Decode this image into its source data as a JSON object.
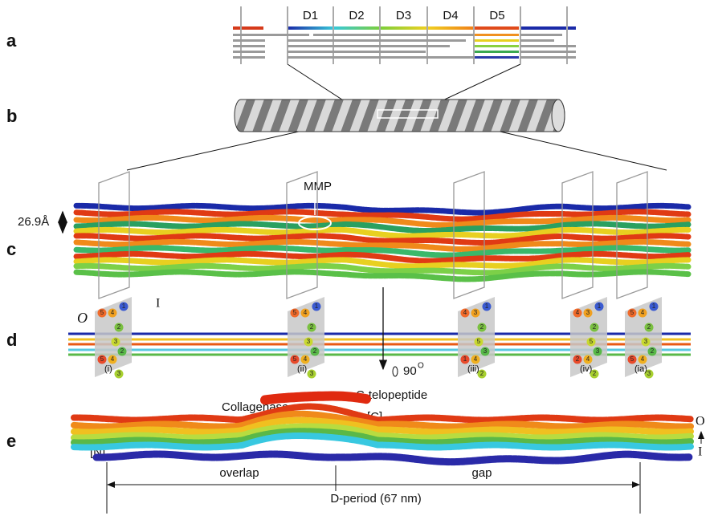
{
  "panels": {
    "a": {
      "label": "a",
      "domains": [
        "D1",
        "D2",
        "D3",
        "D4",
        "D5"
      ]
    },
    "b": {
      "label": "b"
    },
    "c": {
      "label": "c",
      "spacing": "26.9Å",
      "site": "MMP"
    },
    "d": {
      "label": "d",
      "side_out": "O",
      "side_in": "I",
      "rotation": "90",
      "rotation_sup": "O",
      "sections": [
        {
          "label": "(i)",
          "numbers": [
            "5",
            "4",
            "1",
            "2",
            "3",
            "5",
            "4",
            "2",
            "3"
          ]
        },
        {
          "label": "(ii)",
          "numbers": [
            "5",
            "4",
            "1",
            "2",
            "3",
            "5",
            "4",
            "2",
            "3"
          ]
        },
        {
          "label": "(iii)",
          "numbers": [
            "4",
            "3",
            "1",
            "2",
            "5",
            "1",
            "4",
            "3",
            "2"
          ]
        },
        {
          "label": "(iv)",
          "numbers": [
            "4",
            "3",
            "1",
            "2",
            "5",
            "2",
            "4",
            "3",
            "2"
          ]
        },
        {
          "label": "(ia)",
          "numbers": [
            "5",
            "4",
            "1",
            "2",
            "3",
            "5",
            "4",
            "2",
            "3"
          ]
        }
      ]
    },
    "e": {
      "label": "e",
      "enzyme": "Collagenase",
      "telopeptide": "C-telopeptide",
      "c_term": "[C]",
      "n_term": "[N]",
      "side_out": "O",
      "side_in": "I",
      "overlap": "overlap",
      "gap": "gap",
      "period": "D-period (67 nm)"
    }
  }
}
